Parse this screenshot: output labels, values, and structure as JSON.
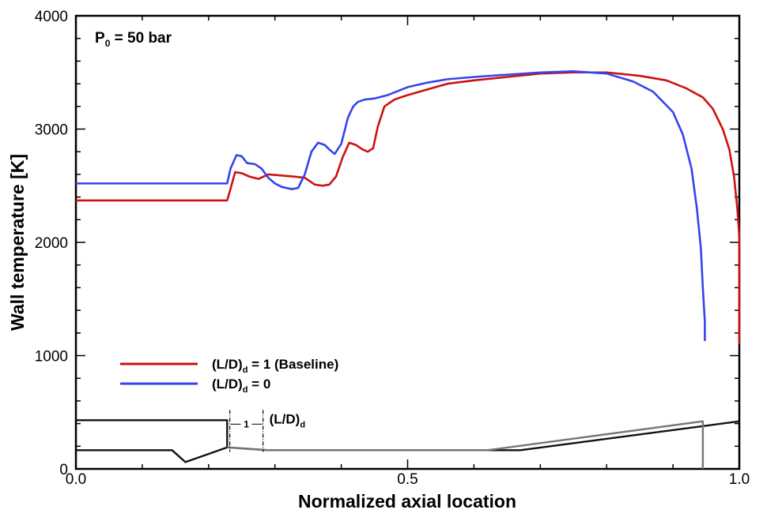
{
  "chart_data": {
    "type": "line",
    "title": "",
    "xlabel": "Normalized axial location",
    "ylabel": "Wall temperature [K]",
    "xlim": [
      0,
      1
    ],
    "ylim": [
      0,
      4000
    ],
    "xticks": [
      0,
      0.5,
      1
    ],
    "xtick_labels": [
      "0.0",
      "0.5",
      "1.0"
    ],
    "yticks": [
      0,
      1000,
      2000,
      3000,
      4000
    ],
    "ytick_labels": [
      "0",
      "1000",
      "2000",
      "3000",
      "4000"
    ],
    "grid": false,
    "annotation": {
      "pressure_main": "P",
      "pressure_sub": "0",
      "pressure_rest": " = 50 bar",
      "ld_main": "(L/D)",
      "ld_sub": "d",
      "ld_gap_label": "1"
    },
    "legend": {
      "placement": "lower-left",
      "entries": [
        {
          "main": "(L/D)",
          "sub": "d",
          "rest": " = 1 (Baseline)",
          "color": "#cc1111"
        },
        {
          "main": "(L/D)",
          "sub": "d",
          "rest": " = 0",
          "color": "#3344ee"
        }
      ]
    },
    "series": [
      {
        "name": "(L/D)d = 1 (Baseline)",
        "color": "#cc1111",
        "x": [
          0,
          0.228,
          0.232,
          0.24,
          0.25,
          0.262,
          0.275,
          0.29,
          0.31,
          0.33,
          0.345,
          0.36,
          0.372,
          0.382,
          0.392,
          0.402,
          0.412,
          0.422,
          0.432,
          0.44,
          0.448,
          0.455,
          0.465,
          0.48,
          0.5,
          0.53,
          0.56,
          0.6,
          0.65,
          0.7,
          0.75,
          0.8,
          0.85,
          0.89,
          0.92,
          0.945,
          0.96,
          0.975,
          0.985,
          0.992,
          0.997,
          1.0,
          1.0
        ],
        "values": [
          2370,
          2370,
          2450,
          2620,
          2610,
          2580,
          2560,
          2600,
          2590,
          2580,
          2570,
          2510,
          2500,
          2510,
          2580,
          2750,
          2880,
          2860,
          2820,
          2800,
          2830,
          3020,
          3200,
          3260,
          3300,
          3350,
          3400,
          3430,
          3460,
          3490,
          3500,
          3500,
          3470,
          3430,
          3360,
          3280,
          3180,
          3000,
          2820,
          2580,
          2300,
          2050,
          1100
        ]
      },
      {
        "name": "(L/D)d = 0",
        "color": "#3344ee",
        "x": [
          0,
          0.228,
          0.233,
          0.242,
          0.25,
          0.258,
          0.27,
          0.28,
          0.29,
          0.3,
          0.31,
          0.325,
          0.335,
          0.345,
          0.355,
          0.365,
          0.375,
          0.382,
          0.39,
          0.4,
          0.41,
          0.418,
          0.425,
          0.435,
          0.45,
          0.47,
          0.5,
          0.53,
          0.56,
          0.6,
          0.65,
          0.7,
          0.75,
          0.8,
          0.84,
          0.87,
          0.9,
          0.915,
          0.928,
          0.936,
          0.942,
          0.945,
          0.948,
          0.948
        ],
        "values": [
          2520,
          2520,
          2650,
          2770,
          2760,
          2700,
          2690,
          2650,
          2570,
          2520,
          2490,
          2470,
          2480,
          2600,
          2800,
          2880,
          2860,
          2820,
          2780,
          2870,
          3100,
          3200,
          3240,
          3260,
          3270,
          3300,
          3370,
          3410,
          3440,
          3460,
          3480,
          3500,
          3510,
          3490,
          3420,
          3330,
          3150,
          2950,
          2650,
          2300,
          1950,
          1600,
          1300,
          1130
        ]
      },
      {
        "name": "Geometry (L/D)d = 1",
        "color": "#111111",
        "x": [
          0,
          0.145,
          0.165,
          0.228,
          0.228,
          0.29,
          0.33,
          0.67,
          1.0
        ],
        "values": [
          165,
          165,
          60,
          190,
          190,
          165,
          165,
          165,
          420
        ]
      },
      {
        "name": "Geometry outer wall",
        "color": "#111111",
        "x": [
          0,
          0.228,
          0.228
        ],
        "values": [
          430,
          430,
          190
        ]
      },
      {
        "name": "Geometry (L/D)d = 0",
        "color": "#777777",
        "x": [
          0.228,
          0.25,
          0.29,
          0.62,
          0.945,
          0.945
        ],
        "values": [
          190,
          180,
          165,
          165,
          420,
          0
        ]
      }
    ]
  }
}
